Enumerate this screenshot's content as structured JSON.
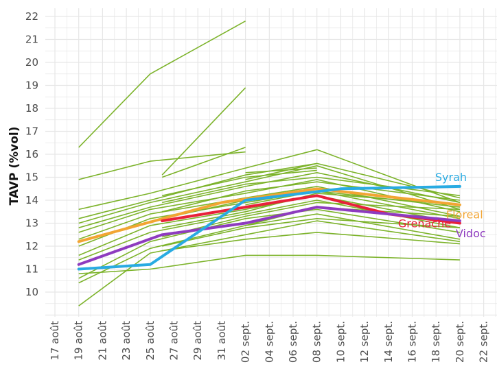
{
  "chart_data": {
    "type": "line",
    "ylabel": "TAVP (%vol)",
    "xlabel": "",
    "ylim": [
      9,
      22.4
    ],
    "x_ticks": [
      "17 août",
      "19 août",
      "21 août",
      "23 août",
      "25 août",
      "27 août",
      "29 août",
      "31 août",
      "02 sept.",
      "04 sept.",
      "06 sept.",
      "08 sept.",
      "10 sept.",
      "12 sept.",
      "14 sept.",
      "16 sept.",
      "18 sept.",
      "20 sept.",
      "22 sept."
    ],
    "y_ticks": [
      10,
      11,
      12,
      13,
      14,
      15,
      16,
      17,
      18,
      19,
      20,
      21,
      22
    ],
    "grid": true,
    "colors": {
      "background_lines": "#7cb32a",
      "Syrah": "#29abe2",
      "Floreal": "#f2a533",
      "Grenache": "#e8203a",
      "Vidoc": "#8e3bbf",
      "grid": "#e6e6e6"
    },
    "highlight_series": [
      {
        "name": "Floreal",
        "points": [
          [
            "19 août",
            12.2
          ],
          [
            "31 août",
            13.9
          ],
          [
            "08 sept.",
            14.5
          ],
          [
            "20 sept.",
            13.8
          ]
        ]
      },
      {
        "name": "Grenache",
        "points": [
          [
            "26 août",
            13.1
          ],
          [
            "02 sept.",
            13.7
          ],
          [
            "08 sept.",
            14.2
          ],
          [
            "14 sept.",
            13.4
          ],
          [
            "20 sept.",
            13.0
          ]
        ]
      },
      {
        "name": "Vidoc",
        "points": [
          [
            "19 août",
            11.2
          ],
          [
            "26 août",
            12.5
          ],
          [
            "02 sept.",
            13.0
          ],
          [
            "08 sept.",
            13.7
          ],
          [
            "20 sept.",
            13.1
          ]
        ]
      },
      {
        "name": "Syrah",
        "points": [
          [
            "19 août",
            11.0
          ],
          [
            "25 août",
            11.2
          ],
          [
            "02 sept.",
            14.0
          ],
          [
            "10 sept.",
            14.5
          ],
          [
            "20 sept.",
            14.6
          ]
        ]
      }
    ],
    "background_series": [
      [
        [
          "19 août",
          16.3
        ],
        [
          "25 août",
          19.5
        ],
        [
          "02 sept.",
          21.8
        ]
      ],
      [
        [
          "19 août",
          14.9
        ],
        [
          "25 août",
          15.7
        ],
        [
          "02 sept.",
          16.1
        ]
      ],
      [
        [
          "26 août",
          15.1
        ],
        [
          "02 sept.",
          18.9
        ]
      ],
      [
        [
          "26 août",
          15.0
        ],
        [
          "02 sept.",
          16.3
        ]
      ],
      [
        [
          "19 août",
          13.6
        ],
        [
          "25 août",
          14.3
        ],
        [
          "02 sept.",
          15.4
        ],
        [
          "08 sept.",
          16.2
        ],
        [
          "20 sept.",
          13.9
        ]
      ],
      [
        [
          "19 août",
          13.2
        ],
        [
          "25 août",
          14.0
        ],
        [
          "02 sept.",
          15.1
        ],
        [
          "08 sept.",
          15.6
        ],
        [
          "20 sept.",
          14.1
        ]
      ],
      [
        [
          "19 août",
          13.0
        ],
        [
          "25 août",
          13.9
        ],
        [
          "02 sept.",
          14.8
        ],
        [
          "08 sept.",
          15.5
        ],
        [
          "20 sept.",
          13.6
        ]
      ],
      [
        [
          "19 août",
          12.8
        ],
        [
          "25 août",
          13.7
        ],
        [
          "02 sept.",
          14.6
        ],
        [
          "08 sept.",
          15.2
        ],
        [
          "20 sept.",
          13.9
        ]
      ],
      [
        [
          "19 août",
          12.6
        ],
        [
          "25 août",
          13.6
        ],
        [
          "02 sept.",
          14.3
        ],
        [
          "08 sept.",
          14.9
        ],
        [
          "20 sept.",
          13.5
        ]
      ],
      [
        [
          "19 août",
          12.3
        ],
        [
          "25 août",
          13.4
        ],
        [
          "02 sept.",
          14.1
        ],
        [
          "08 sept.",
          14.6
        ],
        [
          "20 sept.",
          13.3
        ]
      ],
      [
        [
          "19 août",
          12.0
        ],
        [
          "25 août",
          13.2
        ],
        [
          "02 sept.",
          13.9
        ],
        [
          "08 sept.",
          14.4
        ],
        [
          "20 sept.",
          13.2
        ]
      ],
      [
        [
          "19 août",
          11.6
        ],
        [
          "25 août",
          12.9
        ],
        [
          "02 sept.",
          13.6
        ],
        [
          "08 sept.",
          14.2
        ],
        [
          "20 sept.",
          13.0
        ]
      ],
      [
        [
          "19 août",
          11.4
        ],
        [
          "25 août",
          12.6
        ],
        [
          "02 sept.",
          13.4
        ],
        [
          "08 sept.",
          14.0
        ],
        [
          "20 sept.",
          12.8
        ]
      ],
      [
        [
          "19 août",
          10.6
        ],
        [
          "25 août",
          12.2
        ],
        [
          "02 sept.",
          13.2
        ],
        [
          "08 sept.",
          13.6
        ],
        [
          "20 sept.",
          12.6
        ]
      ],
      [
        [
          "19 août",
          10.4
        ],
        [
          "25 août",
          11.9
        ],
        [
          "02 sept.",
          12.9
        ],
        [
          "08 sept.",
          13.4
        ],
        [
          "20 sept.",
          12.3
        ]
      ],
      [
        [
          "19 août",
          9.4
        ],
        [
          "25 août",
          11.7
        ],
        [
          "02 sept.",
          12.5
        ],
        [
          "08 sept.",
          13.1
        ],
        [
          "20 sept.",
          12.2
        ]
      ],
      [
        [
          "26 août",
          14.2
        ],
        [
          "02 sept.",
          15.0
        ],
        [
          "08 sept.",
          15.3
        ]
      ],
      [
        [
          "26 août",
          13.9
        ],
        [
          "02 sept.",
          14.7
        ],
        [
          "08 sept.",
          15.0
        ],
        [
          "20 sept.",
          14.2
        ]
      ],
      [
        [
          "26 août",
          13.5
        ],
        [
          "02 sept.",
          14.4
        ],
        [
          "08 sept.",
          14.8
        ],
        [
          "20 sept.",
          14.0
        ]
      ],
      [
        [
          "26 août",
          13.2
        ],
        [
          "02 sept.",
          14.0
        ],
        [
          "08 sept.",
          14.5
        ]
      ],
      [
        [
          "26 août",
          12.8
        ],
        [
          "02 sept.",
          13.5
        ],
        [
          "08 sept.",
          14.3
        ],
        [
          "20 sept.",
          13.8
        ]
      ],
      [
        [
          "26 août",
          12.4
        ],
        [
          "02 sept.",
          13.3
        ],
        [
          "08 sept.",
          13.9
        ],
        [
          "20 sept.",
          13.6
        ]
      ],
      [
        [
          "26 août",
          12.0
        ],
        [
          "02 sept.",
          12.8
        ],
        [
          "08 sept.",
          13.2
        ],
        [
          "20 sept.",
          12.8
        ]
      ],
      [
        [
          "26 août",
          11.8
        ],
        [
          "02 sept.",
          12.3
        ],
        [
          "08 sept.",
          12.6
        ],
        [
          "20 sept.",
          12.1
        ]
      ],
      [
        [
          "19 août",
          10.8
        ],
        [
          "25 août",
          11.0
        ],
        [
          "02 sept.",
          11.6
        ],
        [
          "08 sept.",
          11.6
        ],
        [
          "20 sept.",
          11.4
        ]
      ],
      [
        [
          "02 sept.",
          15.2
        ],
        [
          "08 sept.",
          15.4
        ]
      ],
      [
        [
          "02 sept.",
          14.9
        ],
        [
          "08 sept.",
          15.6
        ]
      ],
      [
        [
          "02 sept.",
          13.8
        ],
        [
          "08 sept.",
          14.4
        ],
        [
          "20 sept.",
          13.7
        ]
      ],
      [
        [
          "02 sept.",
          12.9
        ],
        [
          "08 sept.",
          13.7
        ],
        [
          "20 sept.",
          13.3
        ]
      ]
    ]
  }
}
